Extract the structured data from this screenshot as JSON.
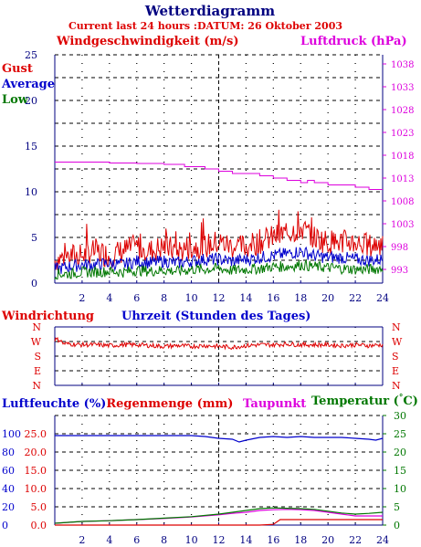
{
  "header": {
    "title": "Wetterdiagramm",
    "subtitle": "Current last 24 hours :DATUM: 26 Oktober 2003"
  },
  "colors": {
    "red": "#dd0000",
    "blue": "#0000cc",
    "green": "#007700",
    "magenta": "#dd00dd",
    "navy": "#000080",
    "grid": "#000000"
  },
  "chart_data": [
    {
      "type": "line",
      "id": "wind",
      "title": "Windgeschwindigkeit (m/s)",
      "right_title": "Luftdruck (hPa)",
      "legend": [
        "Gust",
        "Average",
        "Low"
      ],
      "xlabel": "Uhrzeit (Stunden des Tages)",
      "x_ticks": [
        "2",
        "4",
        "6",
        "8",
        "10",
        "12",
        "14",
        "16",
        "18",
        "20",
        "22",
        "24"
      ],
      "xlim": [
        0,
        24
      ],
      "ylim": [
        0,
        25
      ],
      "y_ticks": [
        "0",
        "5",
        "10",
        "15",
        "20",
        "25"
      ],
      "y2lim": [
        990,
        1040
      ],
      "y2_ticks": [
        "993",
        "998",
        "1003",
        "1008",
        "1013",
        "1018",
        "1023",
        "1028",
        "1033",
        "1038"
      ],
      "grid": true,
      "series": [
        {
          "name": "Gust",
          "color": "#dd0000",
          "x": [
            0,
            1,
            2,
            3,
            4,
            5,
            6,
            7,
            8,
            9,
            10,
            11,
            12,
            13,
            14,
            15,
            16,
            17,
            18,
            19,
            20,
            21,
            22,
            23,
            24
          ],
          "values": [
            2.5,
            3.0,
            3.0,
            3.5,
            3.0,
            3.5,
            4.0,
            3.5,
            4.0,
            3.5,
            4.0,
            4.0,
            4.5,
            4.0,
            4.0,
            4.5,
            5.0,
            5.5,
            6.0,
            5.0,
            4.5,
            4.5,
            4.5,
            4.0,
            4.5
          ]
        },
        {
          "name": "Average",
          "color": "#0000cc",
          "x": [
            0,
            1,
            2,
            3,
            4,
            5,
            6,
            7,
            8,
            9,
            10,
            11,
            12,
            13,
            14,
            15,
            16,
            17,
            18,
            19,
            20,
            21,
            22,
            23,
            24
          ],
          "values": [
            1.5,
            1.8,
            2.0,
            2.0,
            2.2,
            2.0,
            2.4,
            2.2,
            2.4,
            2.2,
            2.4,
            2.6,
            2.6,
            2.4,
            2.6,
            2.8,
            3.0,
            3.2,
            3.5,
            3.0,
            2.8,
            2.8,
            2.6,
            2.5,
            2.6
          ]
        },
        {
          "name": "Low",
          "color": "#007700",
          "x": [
            0,
            1,
            2,
            3,
            4,
            5,
            6,
            7,
            8,
            9,
            10,
            11,
            12,
            13,
            14,
            15,
            16,
            17,
            18,
            19,
            20,
            21,
            22,
            23,
            24
          ],
          "values": [
            1.0,
            1.0,
            1.2,
            1.2,
            1.3,
            1.2,
            1.4,
            1.3,
            1.4,
            1.3,
            1.5,
            1.5,
            1.6,
            1.4,
            1.5,
            1.6,
            1.8,
            1.8,
            2.0,
            1.8,
            1.7,
            1.6,
            1.5,
            1.5,
            1.6
          ]
        },
        {
          "name": "Luftdruck",
          "color": "#dd00dd",
          "axis": "right",
          "x": [
            0,
            2,
            4,
            6,
            8,
            9,
            9.5,
            11,
            12,
            13,
            15,
            16,
            17,
            18,
            18.5,
            19,
            20,
            21,
            22,
            23,
            24
          ],
          "values": [
            1016.5,
            1016.5,
            1016.3,
            1016.2,
            1016.0,
            1016.0,
            1015.5,
            1015.0,
            1014.5,
            1014.0,
            1013.5,
            1013.0,
            1012.5,
            1012.0,
            1012.5,
            1012.0,
            1011.5,
            1011.5,
            1011.0,
            1010.5,
            1010.5
          ]
        }
      ]
    },
    {
      "type": "line",
      "id": "direction",
      "title": "Windrichtung",
      "y_ticks": [
        "N",
        "W",
        "S",
        "E",
        "N"
      ],
      "ylim": [
        0,
        360
      ],
      "xlim": [
        0,
        24
      ],
      "series": [
        {
          "name": "Windrichtung",
          "color": "#dd0000",
          "x": [
            0,
            1,
            2,
            3,
            4,
            5,
            6,
            7,
            8,
            9,
            10,
            11,
            12,
            13,
            14,
            15,
            16,
            17,
            18,
            19,
            20,
            21,
            22,
            23,
            24
          ],
          "values": [
            265,
            255,
            250,
            250,
            245,
            250,
            250,
            245,
            240,
            245,
            240,
            245,
            240,
            235,
            245,
            250,
            250,
            255,
            250,
            250,
            250,
            245,
            250,
            245,
            250
          ]
        }
      ]
    },
    {
      "type": "line",
      "id": "humidity",
      "title": "Luftfeuchte (%)",
      "title2": "Regenmenge (mm)",
      "title3": "Taupunkt",
      "title4": "Temperatur (",
      "title4_unit": "°C",
      "title4_close": ")",
      "left_ticks_blue": [
        "0",
        "20",
        "40",
        "60",
        "80",
        "100"
      ],
      "left_ticks_red": [
        "0.0",
        "5.0",
        "10.0",
        "15.0",
        "20.0",
        "25.0"
      ],
      "ylim": [
        0,
        30
      ],
      "y_ticks": [
        "0",
        "5",
        "10",
        "15",
        "20",
        "25",
        "30"
      ],
      "xlim": [
        0,
        24
      ],
      "x_ticks": [
        "2",
        "4",
        "6",
        "8",
        "10",
        "12",
        "14",
        "16",
        "18",
        "20",
        "22",
        "24"
      ],
      "series": [
        {
          "name": "Luftfeuchte",
          "color": "#0000cc",
          "unit": "%",
          "ylim": [
            0,
            120
          ],
          "x": [
            0,
            2,
            4,
            6,
            8,
            10,
            11,
            12,
            13,
            13.5,
            14,
            15,
            16,
            17,
            18,
            19,
            20,
            21,
            22,
            23,
            23.5,
            24
          ],
          "values": [
            98,
            98,
            98,
            98,
            98,
            98,
            97,
            95,
            94,
            91,
            93,
            96,
            97,
            96,
            97,
            96,
            96,
            96,
            95,
            94,
            93,
            95
          ]
        },
        {
          "name": "Regenmenge",
          "color": "#dd0000",
          "unit": "mm",
          "ylim": [
            0,
            30
          ],
          "x": [
            0,
            14,
            15,
            16,
            16.5,
            17,
            20,
            24
          ],
          "values": [
            0,
            0,
            0,
            0.2,
            1.5,
            1.5,
            1.5,
            1.5
          ]
        },
        {
          "name": "Taupunkt",
          "color": "#dd00dd",
          "x": [
            0,
            2,
            4,
            6,
            8,
            10,
            12,
            13,
            14,
            15,
            16,
            17,
            18,
            19,
            20,
            21,
            22,
            23,
            24
          ],
          "values": [
            0.5,
            1.0,
            1.2,
            1.5,
            1.8,
            2.2,
            2.8,
            3.2,
            3.5,
            4.0,
            4.2,
            4.3,
            4.2,
            4.0,
            3.5,
            3.0,
            2.5,
            2.5,
            2.5
          ]
        },
        {
          "name": "Temperatur",
          "color": "#007700",
          "x": [
            0,
            2,
            4,
            6,
            8,
            10,
            12,
            13,
            14,
            15,
            16,
            17,
            18,
            19,
            20,
            21,
            22,
            23,
            24
          ],
          "values": [
            0.5,
            1.0,
            1.2,
            1.5,
            1.9,
            2.3,
            3.0,
            3.5,
            4.0,
            4.5,
            4.7,
            4.6,
            4.5,
            4.3,
            3.8,
            3.3,
            3.0,
            3.2,
            3.5
          ]
        }
      ]
    }
  ]
}
